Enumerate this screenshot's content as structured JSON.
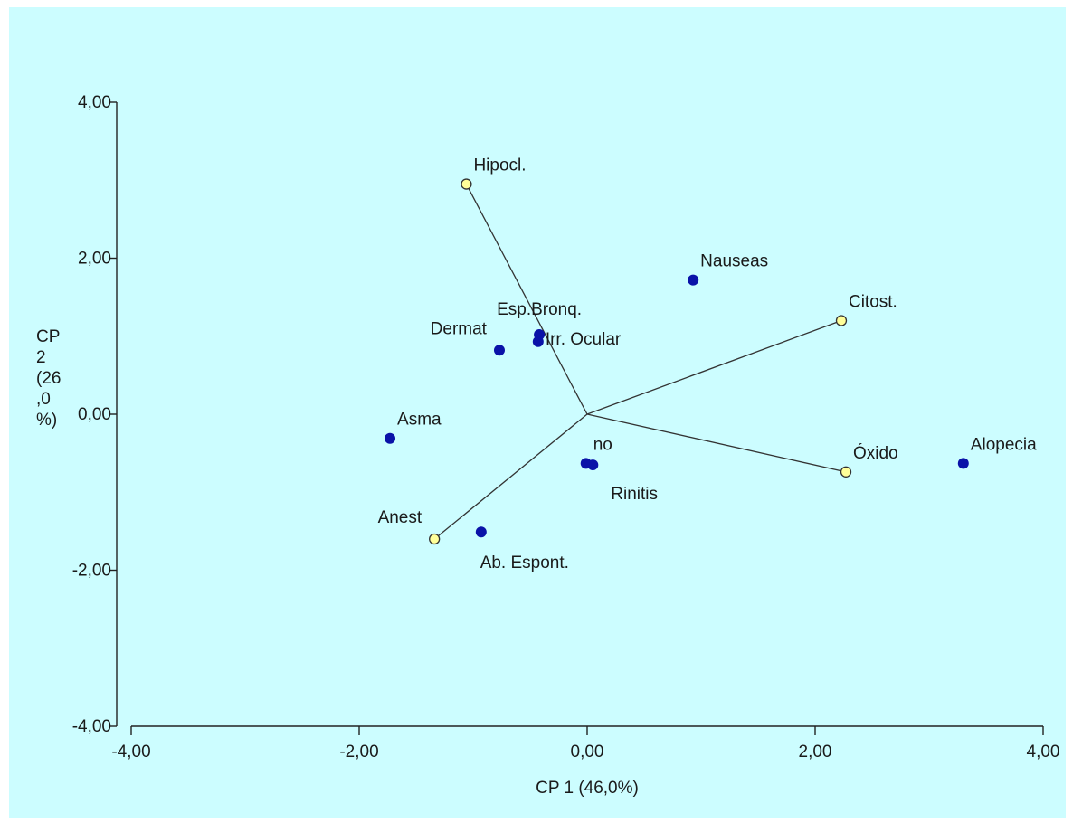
{
  "chart_data": {
    "type": "scatter",
    "subtype": "biplot",
    "title": "",
    "xlabel": "CP 1 (46,0%)",
    "ylabel_lines": [
      "CP",
      "2",
      "(26",
      ",0",
      "%)"
    ],
    "xlim": [
      -4.0,
      4.0
    ],
    "ylim": [
      -4.0,
      4.0
    ],
    "x_ticks": [
      {
        "value": -4.0,
        "label": "-4,00"
      },
      {
        "value": -2.0,
        "label": "-2,00"
      },
      {
        "value": 0.0,
        "label": "0,00"
      },
      {
        "value": 2.0,
        "label": "2,00"
      },
      {
        "value": 4.0,
        "label": "4,00"
      }
    ],
    "y_ticks": [
      {
        "value": -4.0,
        "label": "-4,00"
      },
      {
        "value": -2.0,
        "label": "-2,00"
      },
      {
        "value": 0.0,
        "label": "0,00"
      },
      {
        "value": 2.0,
        "label": "2,00"
      },
      {
        "value": 4.0,
        "label": "4,00"
      }
    ],
    "grid": false,
    "background_color": "#ccfdff",
    "point_color": "#0a12a8",
    "vector_point_color": "#ffff99",
    "points": [
      {
        "label": "Nauseas",
        "x": 0.93,
        "y": 1.72,
        "label_pos": "above-right"
      },
      {
        "label": "Esp.Bronq.",
        "x": -0.42,
        "y": 1.02,
        "label_pos": "above"
      },
      {
        "label": "Irr. Ocular",
        "x": -0.43,
        "y": 0.93,
        "label_pos": "right"
      },
      {
        "label": "Dermat",
        "x": -0.77,
        "y": 0.82,
        "label_pos": "above-left"
      },
      {
        "label": "Asma",
        "x": -1.73,
        "y": -0.31,
        "label_pos": "above-right"
      },
      {
        "label": "no",
        "x": -0.01,
        "y": -0.63,
        "label_pos": "above-right"
      },
      {
        "label": "Rinitis",
        "x": 0.05,
        "y": -0.65,
        "label_pos": "below-right"
      },
      {
        "label": "Ab. Espont.",
        "x": -0.93,
        "y": -1.51,
        "label_pos": "below"
      },
      {
        "label": "Alopecia",
        "x": 3.3,
        "y": -0.63,
        "label_pos": "above-right"
      }
    ],
    "vectors": [
      {
        "label": "Hipocl.",
        "x": -1.06,
        "y": 2.95,
        "label_pos": "above-right"
      },
      {
        "label": "Citost.",
        "x": 2.23,
        "y": 1.2,
        "label_pos": "above-right"
      },
      {
        "label": "Óxido",
        "x": 2.27,
        "y": -0.74,
        "label_pos": "above-right"
      },
      {
        "label": "Anest",
        "x": -1.34,
        "y": -1.6,
        "label_pos": "above-left"
      }
    ],
    "vector_origin": {
      "x": 0.0,
      "y": 0.0
    }
  }
}
